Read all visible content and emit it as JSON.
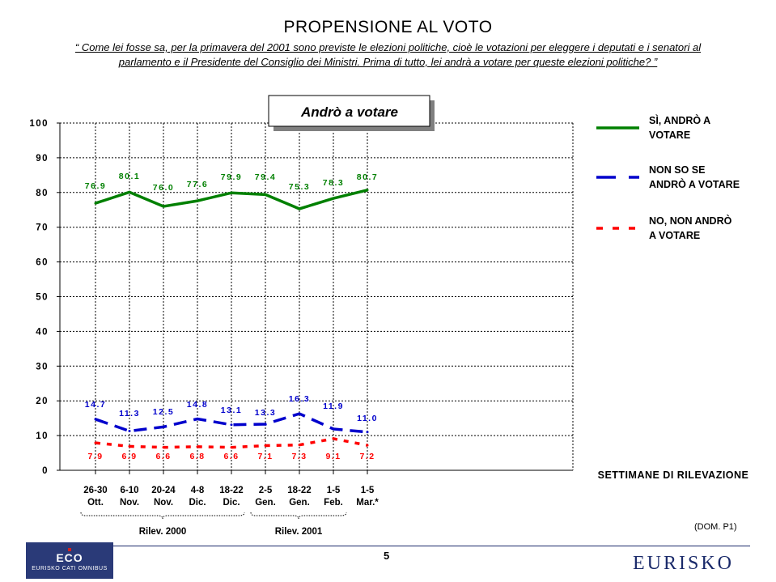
{
  "title": "PROPENSIONE AL VOTO",
  "subtitle_line1": "“ Come lei fosse sa, per la primavera del 2001 sono previste le elezioni politiche, cioè le votazioni per eleggere i deputati e i senatori al",
  "subtitle_line2": "parlamento e il Presidente del Consiglio dei Ministri. Prima di tutto, lei andrà a votare per queste elezioni politiche? ”",
  "chart_data": {
    "type": "line",
    "title": "Andrò a votare",
    "xlabel": "SETTIMANE DI RILEVAZIONE",
    "ylim": [
      0,
      100
    ],
    "yticks": [
      0,
      10,
      20,
      30,
      40,
      50,
      60,
      70,
      80,
      90,
      100
    ],
    "grid": true,
    "legend_position": "right",
    "categories": [
      [
        "26-30",
        "Ott."
      ],
      [
        "6-10",
        "Nov."
      ],
      [
        "20-24",
        "Nov."
      ],
      [
        "4-8",
        "Dic."
      ],
      [
        "18-22",
        "Dic."
      ],
      [
        "2-5",
        "Gen."
      ],
      [
        "18-22",
        "Gen."
      ],
      [
        "1-5",
        "Feb."
      ],
      [
        "1-5",
        "Mar.*"
      ]
    ],
    "groups": [
      {
        "label": "Rilev. 2000",
        "from": 0,
        "to": 4
      },
      {
        "label": "Rilev. 2001",
        "from": 5,
        "to": 7
      }
    ],
    "series": [
      {
        "name_lines": [
          "SÌ, ANDRÒ A",
          "VOTARE"
        ],
        "color": "#008000",
        "style": "solid",
        "values": [
          76.9,
          80.1,
          76.0,
          77.6,
          79.9,
          79.4,
          75.3,
          78.3,
          80.7
        ],
        "labels": [
          "76.9",
          "80.1",
          "76.0",
          "77.6",
          "79.9",
          "79.4",
          "75.3",
          "78.3",
          "80.7"
        ]
      },
      {
        "name_lines": [
          "NON SO SE",
          "ANDRÒ A VOTARE"
        ],
        "color": "#0000cc",
        "style": "dashed",
        "values": [
          14.7,
          11.3,
          12.5,
          14.8,
          13.1,
          13.3,
          16.3,
          11.9,
          11.0
        ],
        "labels": [
          "14.7",
          "11.3",
          "12.5",
          "14.8",
          "13.1",
          "13.3",
          "16.3",
          "11.9",
          "11.0"
        ]
      },
      {
        "name_lines": [
          "NO, NON ANDRÒ",
          "A VOTARE"
        ],
        "color": "#ff0000",
        "style": "dotted",
        "values": [
          7.9,
          6.9,
          6.6,
          6.8,
          6.6,
          7.1,
          7.3,
          9.1,
          7.2
        ],
        "labels": [
          "7.9",
          "6.9",
          "6.6",
          "6.8",
          "6.6",
          "7.1",
          "7.3",
          "9.1",
          "7.2"
        ]
      }
    ]
  },
  "dom_ref": "(DOM. P1)",
  "page_number": "5",
  "footer": {
    "eco_line1": "ECO",
    "eco_line2": "EURISKO CATI OMNIBUS",
    "eurisko": "EURISKO"
  }
}
